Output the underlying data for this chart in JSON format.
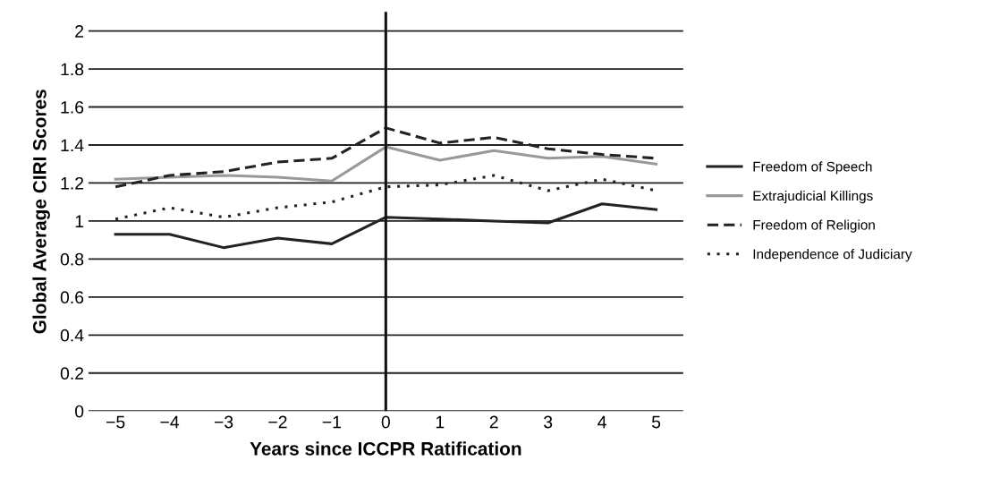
{
  "chart_data": {
    "type": "line",
    "xlabel": "Years since ICCPR Ratification",
    "ylabel": "Global Average CIRI Scores",
    "x": [
      -5,
      -4,
      -3,
      -2,
      -1,
      0,
      1,
      2,
      3,
      4,
      5
    ],
    "series": [
      {
        "name": "Freedom of Speech",
        "color": "#222222",
        "line_style": "solid",
        "values": [
          0.93,
          0.93,
          0.86,
          0.91,
          0.88,
          1.02,
          1.01,
          1.0,
          0.99,
          1.09,
          1.06
        ]
      },
      {
        "name": "Extrajudicial Killings",
        "color": "#999999",
        "line_style": "solid",
        "values": [
          1.22,
          1.23,
          1.24,
          1.23,
          1.21,
          1.39,
          1.32,
          1.37,
          1.33,
          1.34,
          1.3
        ]
      },
      {
        "name": "Freedom of Religion",
        "color": "#222222",
        "line_style": "dashed",
        "values": [
          1.18,
          1.24,
          1.26,
          1.31,
          1.33,
          1.49,
          1.41,
          1.44,
          1.38,
          1.35,
          1.33
        ]
      },
      {
        "name": "Independence of Judiciary",
        "color": "#222222",
        "line_style": "dotted",
        "values": [
          1.01,
          1.07,
          1.02,
          1.07,
          1.1,
          1.18,
          1.19,
          1.24,
          1.16,
          1.22,
          1.16
        ]
      }
    ],
    "xlim": [
      -5.5,
      5.5
    ],
    "ylim": [
      0,
      2.1
    ],
    "xticks": [
      {
        "value": -5,
        "label": "−5"
      },
      {
        "value": -4,
        "label": "−4"
      },
      {
        "value": -3,
        "label": "−3"
      },
      {
        "value": -2,
        "label": "−2"
      },
      {
        "value": -1,
        "label": "−1"
      },
      0,
      1,
      2,
      3,
      4,
      5
    ],
    "yticks": [
      0,
      0.2,
      0.4,
      0.6,
      0.8,
      1,
      1.2,
      1.4,
      1.6,
      1.8,
      2
    ],
    "ref_lines": [
      {
        "axis": "x",
        "value": 0,
        "color": "#111111",
        "line_style": "solid"
      }
    ],
    "grid": "y",
    "legend": "right",
    "marker": "none"
  }
}
